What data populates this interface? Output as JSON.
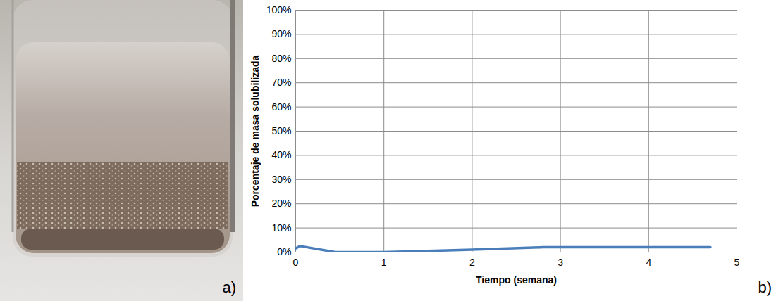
{
  "photo": {
    "label": "a)"
  },
  "chart_data": {
    "type": "line",
    "label": "b)",
    "x_label": "Tiempo (semana)",
    "y_label": "Porcentaje de masa solubilizada",
    "x": [
      0,
      0.05,
      0.45,
      1,
      2,
      2.8,
      3.5,
      4.7
    ],
    "values": [
      1.5,
      2.5,
      0,
      0,
      1,
      2,
      2,
      2
    ],
    "color": "#4a7ebb",
    "xlim": [
      0,
      5
    ],
    "xticks": [
      0,
      1,
      2,
      3,
      4,
      5
    ],
    "ylim": [
      0,
      100
    ],
    "yticks": [
      {
        "value": 0,
        "label": "0%"
      },
      {
        "value": 10,
        "label": "10%"
      },
      {
        "value": 20,
        "label": "20%"
      },
      {
        "value": 30,
        "label": "30%"
      },
      {
        "value": 40,
        "label": "40%"
      },
      {
        "value": 50,
        "label": "50%"
      },
      {
        "value": 60,
        "label": "60%"
      },
      {
        "value": 70,
        "label": "70%"
      },
      {
        "value": 80,
        "label": "80%"
      },
      {
        "value": 90,
        "label": "90%"
      },
      {
        "value": 100,
        "label": "100%"
      }
    ],
    "grid": true
  }
}
